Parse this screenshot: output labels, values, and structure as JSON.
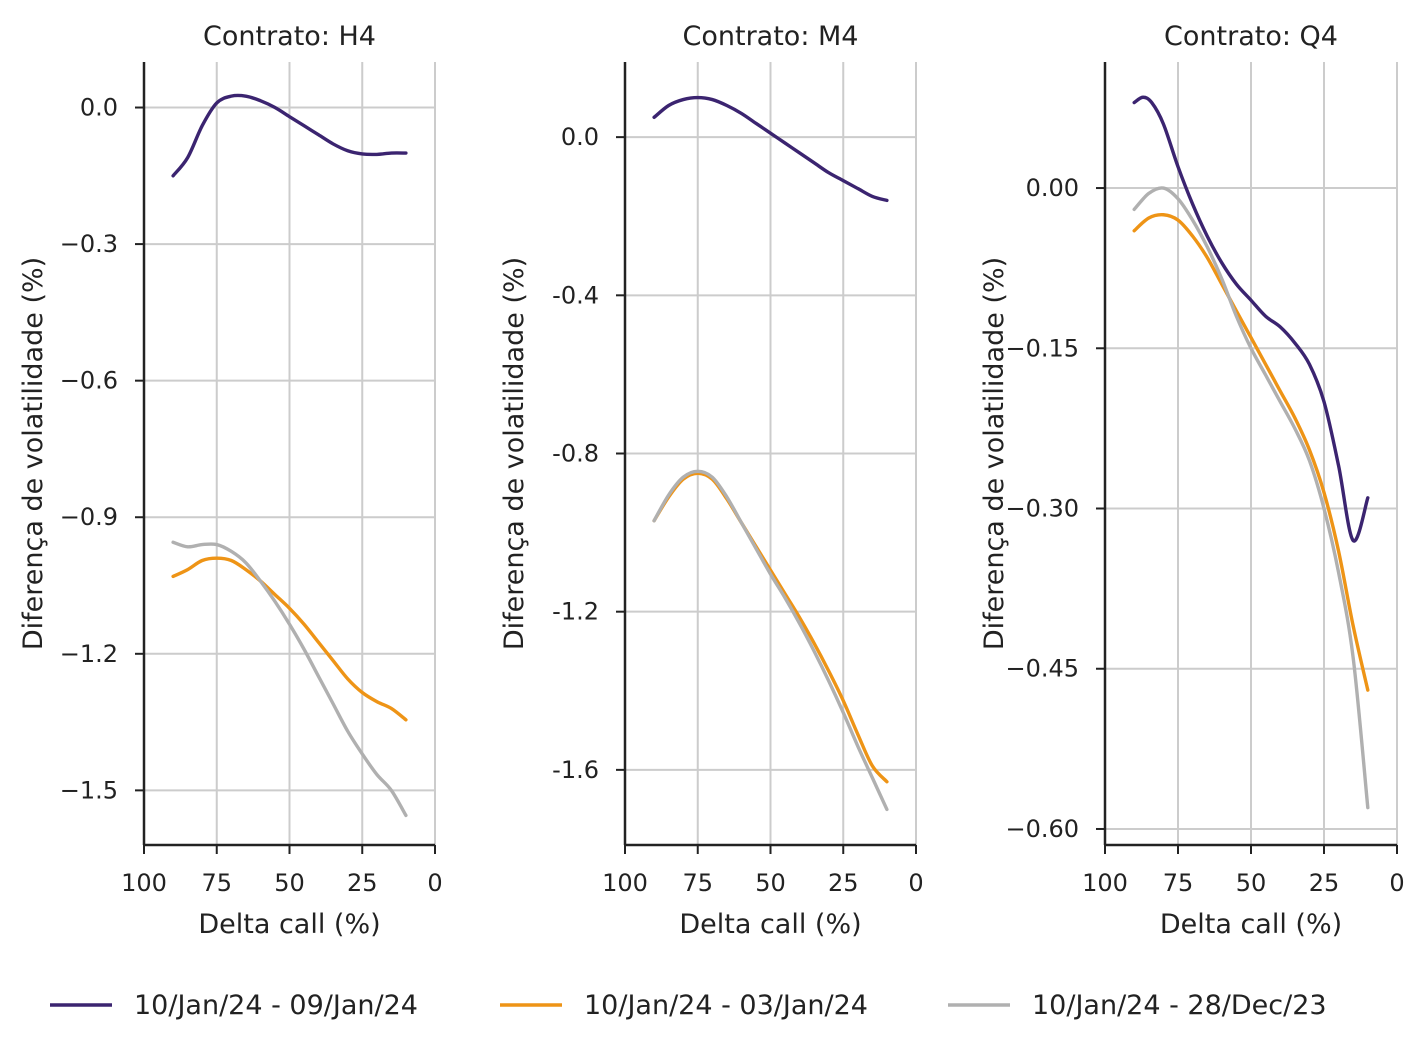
{
  "legend": {
    "position": "bottom",
    "items": [
      {
        "label": "10/Jan/24 - 09/Jan/24",
        "color": "#3b2470"
      },
      {
        "label": "10/Jan/24 - 03/Jan/24",
        "color": "#ee9416"
      },
      {
        "label": "10/Jan/24 - 28/Dec/23",
        "color": "#b0b0b0"
      }
    ]
  },
  "chart_data": [
    {
      "type": "line",
      "title": "Contrato: H4",
      "xlabel": "Delta call (%)",
      "ylabel": "Diferença de volatilidade (%)",
      "xlim": [
        100,
        0
      ],
      "ylim": [
        -1.62,
        0.1
      ],
      "xticks": [
        100,
        75,
        50,
        25,
        0
      ],
      "yticks": [
        0.0,
        -0.3,
        -0.6,
        -0.9,
        -1.2,
        -1.5
      ],
      "ytick_labels": [
        "0.0",
        "−0.3",
        "−0.6",
        "−0.9",
        "−1.2",
        "−1.5"
      ],
      "grid": true,
      "series": [
        {
          "name": "10/Jan/24 - 09/Jan/24",
          "color": "#3b2470",
          "x": [
            90,
            85,
            80,
            75,
            70,
            65,
            60,
            55,
            50,
            45,
            40,
            35,
            30,
            25,
            20,
            15,
            10
          ],
          "y": [
            -0.15,
            -0.11,
            -0.04,
            0.01,
            0.025,
            0.025,
            0.015,
            0.0,
            -0.02,
            -0.04,
            -0.06,
            -0.08,
            -0.095,
            -0.102,
            -0.103,
            -0.1,
            -0.1
          ]
        },
        {
          "name": "10/Jan/24 - 03/Jan/24",
          "color": "#ee9416",
          "x": [
            90,
            85,
            80,
            75,
            70,
            65,
            60,
            55,
            50,
            45,
            40,
            35,
            30,
            25,
            20,
            15,
            10
          ],
          "y": [
            -1.03,
            -1.015,
            -0.995,
            -0.99,
            -0.995,
            -1.015,
            -1.04,
            -1.07,
            -1.1,
            -1.135,
            -1.175,
            -1.215,
            -1.255,
            -1.285,
            -1.305,
            -1.32,
            -1.345
          ]
        },
        {
          "name": "10/Jan/24 - 28/Dec/23",
          "color": "#b0b0b0",
          "x": [
            90,
            85,
            80,
            75,
            70,
            65,
            60,
            55,
            50,
            45,
            40,
            35,
            30,
            25,
            20,
            15,
            10
          ],
          "y": [
            -0.955,
            -0.965,
            -0.96,
            -0.96,
            -0.975,
            -1.0,
            -1.04,
            -1.085,
            -1.135,
            -1.19,
            -1.25,
            -1.31,
            -1.37,
            -1.42,
            -1.465,
            -1.5,
            -1.555
          ]
        }
      ]
    },
    {
      "type": "line",
      "title": "Contrato: M4",
      "xlabel": "Delta call (%)",
      "ylabel": "Diferença de volatilidade (%)",
      "xlim": [
        100,
        0
      ],
      "ylim": [
        -1.79,
        0.19
      ],
      "xticks": [
        100,
        75,
        50,
        25,
        0
      ],
      "yticks": [
        0.0,
        -0.4,
        -0.8,
        -1.2,
        -1.6
      ],
      "ytick_labels": [
        "0.0",
        "-0.4",
        "-0.8",
        "-1.2",
        "-1.6"
      ],
      "grid": true,
      "series": [
        {
          "name": "10/Jan/24 - 09/Jan/24",
          "color": "#3b2470",
          "x": [
            90,
            85,
            80,
            75,
            70,
            65,
            60,
            55,
            50,
            45,
            40,
            35,
            30,
            25,
            20,
            15,
            10
          ],
          "y": [
            0.05,
            0.08,
            0.095,
            0.1,
            0.095,
            0.08,
            0.06,
            0.035,
            0.01,
            -0.015,
            -0.04,
            -0.065,
            -0.09,
            -0.11,
            -0.13,
            -0.15,
            -0.16
          ]
        },
        {
          "name": "10/Jan/24 - 03/Jan/24",
          "color": "#ee9416",
          "x": [
            90,
            85,
            80,
            75,
            70,
            65,
            60,
            55,
            50,
            45,
            40,
            35,
            30,
            25,
            20,
            15,
            10
          ],
          "y": [
            -0.97,
            -0.91,
            -0.865,
            -0.85,
            -0.865,
            -0.915,
            -0.975,
            -1.035,
            -1.095,
            -1.155,
            -1.215,
            -1.28,
            -1.35,
            -1.425,
            -1.51,
            -1.59,
            -1.63
          ]
        },
        {
          "name": "10/Jan/24 - 28/Dec/23",
          "color": "#b0b0b0",
          "x": [
            90,
            85,
            80,
            75,
            70,
            65,
            60,
            55,
            50,
            45,
            40,
            35,
            30,
            25,
            20,
            15,
            10
          ],
          "y": [
            -0.97,
            -0.905,
            -0.86,
            -0.845,
            -0.86,
            -0.91,
            -0.975,
            -1.04,
            -1.105,
            -1.165,
            -1.23,
            -1.3,
            -1.375,
            -1.455,
            -1.54,
            -1.62,
            -1.7
          ]
        }
      ]
    },
    {
      "type": "line",
      "title": "Contrato: Q4",
      "xlabel": "Delta call (%)",
      "ylabel": "Diferença de volatilidade (%)",
      "xlim": [
        100,
        0
      ],
      "ylim": [
        -0.615,
        0.118
      ],
      "xticks": [
        100,
        75,
        50,
        25,
        0
      ],
      "yticks": [
        0.0,
        -0.15,
        -0.3,
        -0.45,
        -0.6
      ],
      "ytick_labels": [
        "0.00",
        "−0.15",
        "−0.30",
        "−0.45",
        "−0.60"
      ],
      "grid": true,
      "series": [
        {
          "name": "10/Jan/24 - 09/Jan/24",
          "color": "#3b2470",
          "x": [
            90,
            87,
            84,
            80,
            75,
            70,
            65,
            60,
            55,
            50,
            45,
            40,
            35,
            30,
            25,
            20,
            15,
            10
          ],
          "y": [
            0.08,
            0.085,
            0.08,
            0.06,
            0.02,
            -0.015,
            -0.045,
            -0.07,
            -0.09,
            -0.105,
            -0.12,
            -0.13,
            -0.145,
            -0.165,
            -0.2,
            -0.26,
            -0.33,
            -0.29
          ]
        },
        {
          "name": "10/Jan/24 - 03/Jan/24",
          "color": "#ee9416",
          "x": [
            90,
            85,
            80,
            75,
            70,
            65,
            60,
            55,
            50,
            45,
            40,
            35,
            30,
            25,
            20,
            15,
            10
          ],
          "y": [
            -0.04,
            -0.028,
            -0.025,
            -0.03,
            -0.045,
            -0.065,
            -0.09,
            -0.115,
            -0.14,
            -0.165,
            -0.19,
            -0.215,
            -0.245,
            -0.285,
            -0.34,
            -0.41,
            -0.47
          ]
        },
        {
          "name": "10/Jan/24 - 28/Dec/23",
          "color": "#b0b0b0",
          "x": [
            90,
            85,
            80,
            75,
            70,
            65,
            60,
            55,
            50,
            45,
            40,
            35,
            30,
            25,
            20,
            15,
            10
          ],
          "y": [
            -0.02,
            -0.005,
            0.0,
            -0.01,
            -0.03,
            -0.055,
            -0.085,
            -0.12,
            -0.15,
            -0.175,
            -0.2,
            -0.225,
            -0.255,
            -0.3,
            -0.36,
            -0.44,
            -0.58
          ]
        }
      ]
    }
  ]
}
